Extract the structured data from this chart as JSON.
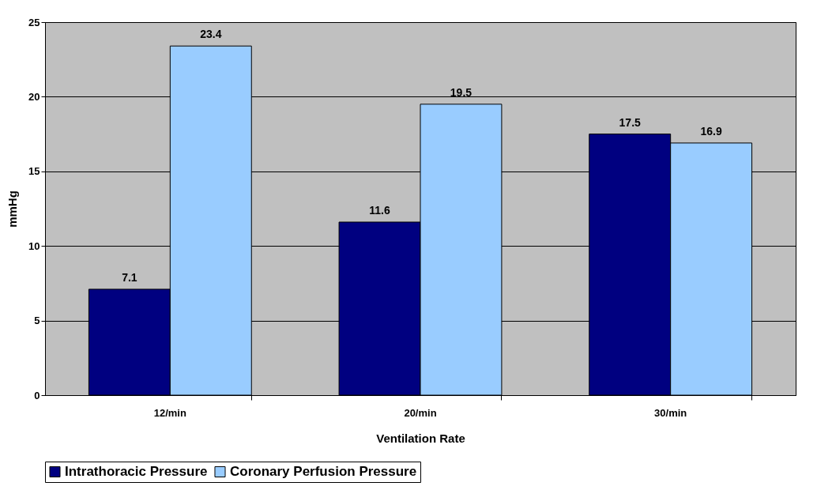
{
  "chart_data": {
    "type": "bar",
    "xlabel": "Ventilation Rate",
    "ylabel": "mmHg",
    "categories": [
      "12/min",
      "20/min",
      "30/min"
    ],
    "series": [
      {
        "name": "Intrathoracic Pressure",
        "color": "#000080",
        "values": [
          7.1,
          11.6,
          17.5
        ]
      },
      {
        "name": "Coronary Perfusion Pressure",
        "color": "#99ccff",
        "values": [
          23.4,
          19.5,
          16.9
        ]
      }
    ],
    "ylim": [
      0,
      25
    ],
    "yticks": [
      0,
      5,
      10,
      15,
      20,
      25
    ],
    "grid": "y",
    "legend": "bottom",
    "data_labels": true
  }
}
